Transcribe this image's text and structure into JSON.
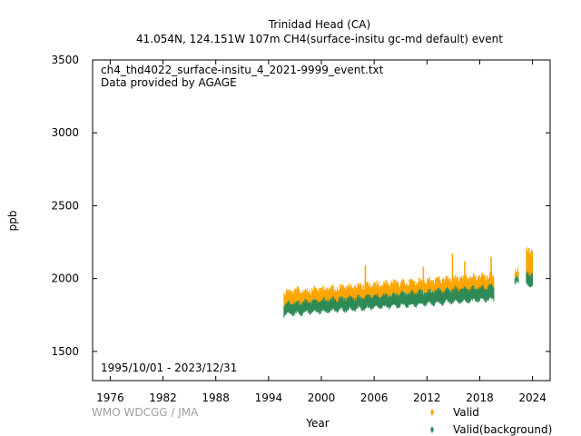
{
  "chart_data": {
    "type": "scatter",
    "title_line1": "Trinidad Head (CA)",
    "title_line2": "41.054N, 124.151W 107m    CH4(surface-insitu gc-md default) event",
    "file_label": "ch4_thd4022_surface-insitu_4_2021-9999_event.txt",
    "provider_label": "Data provided by AGAGE",
    "period_label": "1995/10/01 - 2023/12/31",
    "credit": "WMO WDCGG / JMA",
    "xlabel": "Year",
    "ylabel": "ppb",
    "xlim": [
      1974,
      2026
    ],
    "ylim": [
      1300,
      3500
    ],
    "x_ticks": [
      "1976",
      "1982",
      "1988",
      "1994",
      "2000",
      "2006",
      "2012",
      "2018",
      "2024"
    ],
    "y_ticks": [
      "1500",
      "2000",
      "2500",
      "3000",
      "3500"
    ],
    "legend_position": "bottom-right",
    "series": [
      {
        "name": "Valid",
        "color": "#ffa500",
        "segments": [
          {
            "x": [
              1995.75,
              2019.6
            ],
            "ymin": [
              1775,
              1870
            ],
            "ymax": [
              1930,
              2040
            ]
          },
          {
            "x": [
              2022.0,
              2022.4
            ],
            "ymin": [
              1990,
              1990
            ],
            "ymax": [
              2070,
              2070
            ]
          },
          {
            "x": [
              2023.3,
              2024.0
            ],
            "ymin": [
              1980,
              1980
            ],
            "ymax": [
              2210,
              2210
            ]
          }
        ],
        "spikes": [
          [
            2005.0,
            2090
          ],
          [
            2011.6,
            2080
          ],
          [
            2014.9,
            2170
          ],
          [
            2016.3,
            2120
          ],
          [
            2019.3,
            2150
          ],
          [
            2023.6,
            2210
          ]
        ]
      },
      {
        "name": "Valid(background)",
        "color": "#2e8b57",
        "segments": [
          {
            "x": [
              1995.75,
              2019.6
            ],
            "ymin": [
              1745,
              1850
            ],
            "ymax": [
              1840,
              1960
            ]
          },
          {
            "x": [
              2022.0,
              2022.4
            ],
            "ymin": [
              1955,
              1955
            ],
            "ymax": [
              2010,
              2010
            ]
          },
          {
            "x": [
              2023.3,
              2024.0
            ],
            "ymin": [
              1950,
              1950
            ],
            "ymax": [
              2050,
              2050
            ]
          }
        ],
        "spikes": []
      }
    ]
  }
}
